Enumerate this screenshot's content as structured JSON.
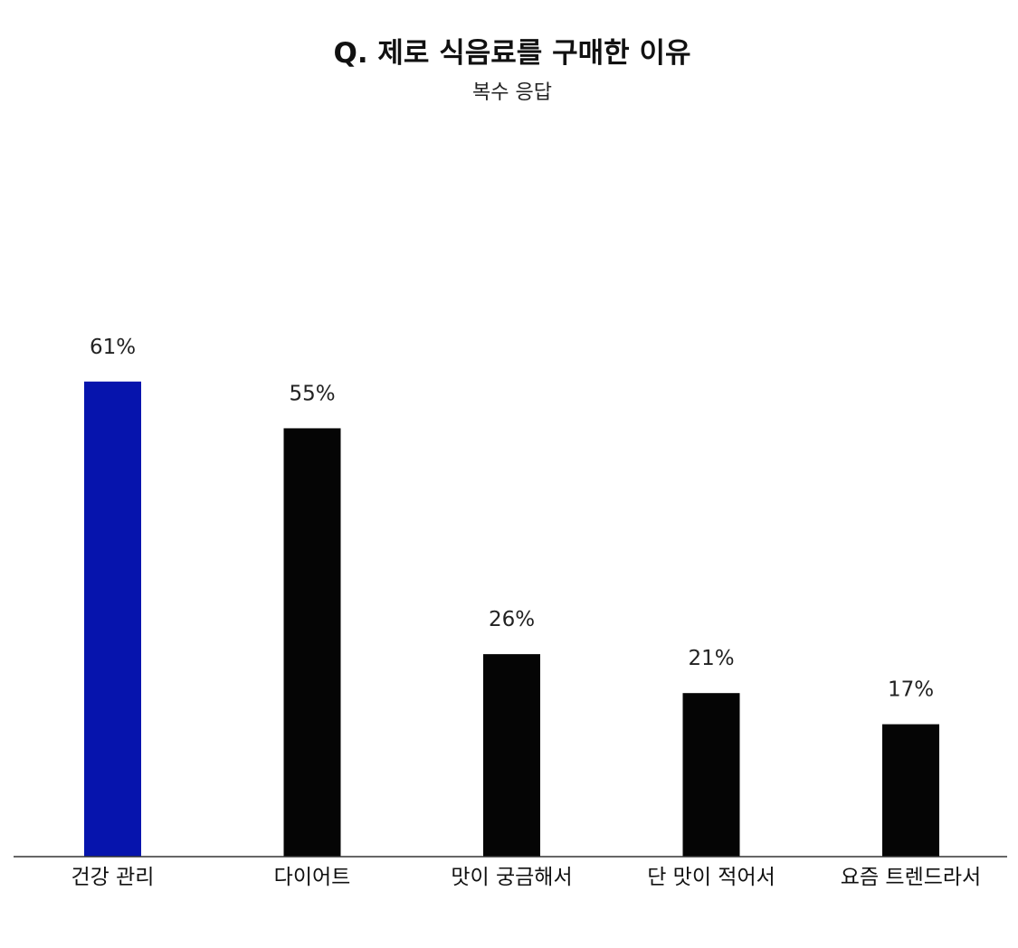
{
  "chart_data": {
    "type": "bar",
    "title": "Q. 제로 식음료를 구매한 이유",
    "subtitle": "복수 응답",
    "categories": [
      "건강 관리",
      "다이어트",
      "맛이 궁금해서",
      "단 맛이 적어서",
      "요즘 트렌드라서"
    ],
    "values": [
      61,
      55,
      26,
      21,
      17
    ],
    "value_labels": [
      "61%",
      "55%",
      "26%",
      "21%",
      "17%"
    ],
    "colors": [
      "#0614ad",
      "#050505",
      "#050505",
      "#050505",
      "#050505"
    ],
    "ylim": [
      0,
      100
    ],
    "grid": false,
    "legend": "none"
  }
}
